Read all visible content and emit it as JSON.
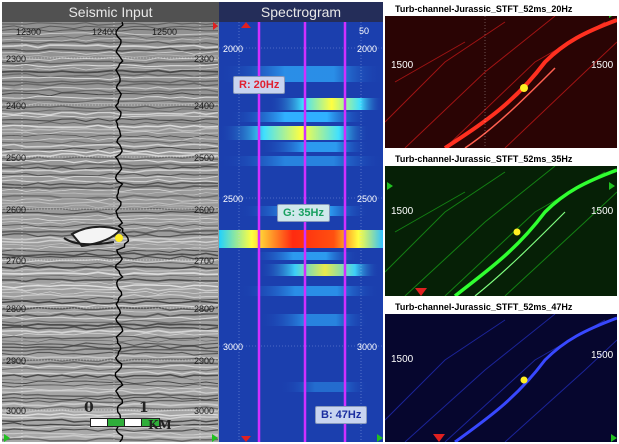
{
  "seismic": {
    "title": "Seismic Input",
    "inline_ticks": [
      "12300",
      "12400",
      "12500"
    ],
    "depth_ticks": [
      "2300",
      "2400",
      "2500",
      "2600",
      "2700",
      "2800",
      "2900",
      "3000"
    ],
    "scale_start": "0",
    "scale_end": "1",
    "scale_unit": "KM"
  },
  "spectrogram": {
    "title": "Spectrogram",
    "top_tick": "50",
    "left_ticks": [
      "2000",
      "2500",
      "3000"
    ],
    "right_ticks": [
      "2000",
      "2500",
      "3000"
    ],
    "r_label": "R: 20Hz",
    "g_label": "G: 35Hz",
    "b_label": "B: 47Hz"
  },
  "stft_panels": [
    {
      "title": "Turb-channel-Jurassic_STFT_52ms_20Hz",
      "left_tick": "1500",
      "right_tick": "1500",
      "color": "#e00000"
    },
    {
      "title": "Turb-channel-Jurassic_STFT_52ms_35Hz",
      "left_tick": "1500",
      "right_tick": "1500",
      "color": "#00d000"
    },
    {
      "title": "Turb-channel-Jurassic_STFT_52ms_47Hz",
      "left_tick": "1500",
      "right_tick": "1500",
      "color": "#2020ff"
    }
  ]
}
